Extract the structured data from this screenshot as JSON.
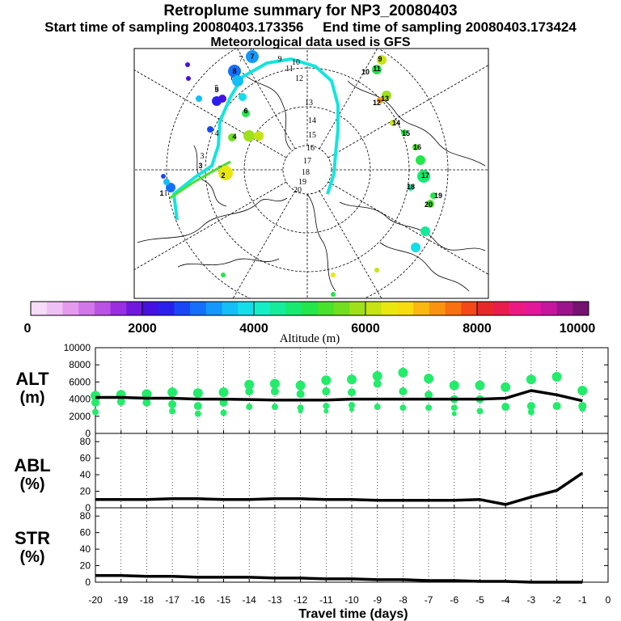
{
  "title": "Retroplume summary for NP3_20080403",
  "subtitle": "Start time of sampling 20080403.173356     End time of sampling 20080403.173424",
  "met_line": "Meteorological data used is GFS",
  "colorbar": {
    "ticks": [
      "0",
      "2000",
      "4000",
      "6000",
      "8000",
      "10000"
    ],
    "label": "Altitude (m)",
    "colors": [
      "#f6dcf8",
      "#efc0f4",
      "#e49bee",
      "#d276ea",
      "#bb52e6",
      "#9a2ee2",
      "#7018de",
      "#4610e0",
      "#2a20ee",
      "#1848f6",
      "#1470fa",
      "#1498fc",
      "#14bef6",
      "#14deea",
      "#14eec6",
      "#14ec9a",
      "#16ea70",
      "#22e64a",
      "#48e22c",
      "#72de20",
      "#9ee01a",
      "#c6e414",
      "#e8e810",
      "#f8dc10",
      "#fab810",
      "#fa9410",
      "#f87010",
      "#f44818",
      "#e82828",
      "#ea1c4c",
      "#ec1a80",
      "#e2189c",
      "#c616a0",
      "#9c148c",
      "#741470"
    ]
  },
  "map": {
    "trajectory_labels": [
      "1",
      "2",
      "3",
      "4",
      "5",
      "6",
      "7",
      "8",
      "9",
      "10",
      "11",
      "12",
      "13",
      "14",
      "15",
      "16",
      "17",
      "18",
      "19",
      "20"
    ],
    "cluster_labels": [
      "1",
      "2",
      "3",
      "4",
      "5",
      "6",
      "7",
      "8",
      "9",
      "10",
      "11",
      "12",
      "13",
      "14",
      "15",
      "16",
      "17",
      "18",
      "19",
      "20"
    ]
  },
  "chart_data": [
    {
      "panel": "ALT",
      "type": "line",
      "ylabel": "ALT\n(m)",
      "ylim": [
        0,
        10000
      ],
      "yticks": [
        0,
        2000,
        4000,
        6000,
        8000,
        10000
      ],
      "x": [
        -20,
        -19,
        -18,
        -17,
        -16,
        -15,
        -14,
        -13,
        -12,
        -11,
        -10,
        -9,
        -8,
        -7,
        -6,
        -5,
        -4,
        -3,
        -2,
        -1
      ],
      "values": [
        4200,
        4200,
        4100,
        4100,
        4000,
        4000,
        3950,
        3900,
        3900,
        3900,
        4000,
        4000,
        4000,
        4000,
        4000,
        4000,
        4100,
        5000,
        4500,
        3800
      ],
      "clusters": [
        [
          [
            -20,
            4400
          ],
          [
            -20,
            3600
          ],
          [
            -20,
            2500
          ]
        ],
        [
          [
            -19,
            4500
          ],
          [
            -19,
            3700
          ]
        ],
        [
          [
            -18,
            4600
          ],
          [
            -18,
            3600
          ]
        ],
        [
          [
            -17,
            4800
          ],
          [
            -17,
            3400
          ],
          [
            -17,
            2600
          ]
        ],
        [
          [
            -16,
            4700
          ],
          [
            -16,
            3200
          ],
          [
            -16,
            2300
          ]
        ],
        [
          [
            -15,
            4800
          ],
          [
            -15,
            3600
          ],
          [
            -15,
            2400
          ]
        ],
        [
          [
            -14,
            5700
          ],
          [
            -14,
            4900
          ],
          [
            -14,
            3100
          ]
        ],
        [
          [
            -13,
            5800
          ],
          [
            -13,
            4900
          ],
          [
            -13,
            3100
          ]
        ],
        [
          [
            -12,
            5600
          ],
          [
            -12,
            4600
          ],
          [
            -12,
            3000
          ],
          [
            -12,
            2600
          ]
        ],
        [
          [
            -11,
            6200
          ],
          [
            -11,
            4900
          ],
          [
            -11,
            3200
          ],
          [
            -11,
            2600
          ]
        ],
        [
          [
            -10,
            6300
          ],
          [
            -10,
            4800
          ],
          [
            -10,
            3300
          ],
          [
            -10,
            2800
          ]
        ],
        [
          [
            -9,
            6700
          ],
          [
            -9,
            5800
          ],
          [
            -9,
            3100
          ]
        ],
        [
          [
            -8,
            7100
          ],
          [
            -8,
            4900
          ],
          [
            -8,
            3000
          ]
        ],
        [
          [
            -7,
            6400
          ],
          [
            -7,
            4500
          ],
          [
            -7,
            3000
          ]
        ],
        [
          [
            -6,
            5600
          ],
          [
            -6,
            4000
          ],
          [
            -6,
            3000
          ],
          [
            -6,
            2300
          ]
        ],
        [
          [
            -5,
            5600
          ],
          [
            -5,
            4000
          ],
          [
            -5,
            2600
          ]
        ],
        [
          [
            -4,
            5400
          ],
          [
            -4,
            3100
          ]
        ],
        [
          [
            -3,
            6300
          ],
          [
            -3,
            3200
          ],
          [
            -3,
            2500
          ]
        ],
        [
          [
            -2,
            6600
          ],
          [
            -2,
            3200
          ]
        ],
        [
          [
            -1,
            5000
          ],
          [
            -1,
            3200
          ],
          [
            -1,
            2900
          ]
        ]
      ]
    },
    {
      "panel": "ABL",
      "type": "line",
      "ylabel": "ABL\n(%)",
      "ylim": [
        0,
        90
      ],
      "yticks": [
        0,
        20,
        40,
        60,
        80
      ],
      "x": [
        -20,
        -19,
        -18,
        -17,
        -16,
        -15,
        -14,
        -13,
        -12,
        -11,
        -10,
        -9,
        -8,
        -7,
        -6,
        -5,
        -4,
        -3,
        -2,
        -1
      ],
      "values": [
        10,
        10,
        10,
        11,
        11,
        10,
        10,
        11,
        11,
        10,
        10,
        9,
        9,
        9,
        9,
        10,
        4,
        13,
        21,
        42
      ]
    },
    {
      "panel": "STR",
      "type": "line",
      "ylabel": "STR\n(%)",
      "ylim": [
        0,
        90
      ],
      "yticks": [
        0,
        20,
        40,
        60,
        80
      ],
      "x": [
        -20,
        -19,
        -18,
        -17,
        -16,
        -15,
        -14,
        -13,
        -12,
        -11,
        -10,
        -9,
        -8,
        -7,
        -6,
        -5,
        -4,
        -3,
        -2,
        -1
      ],
      "values": [
        8,
        8,
        7,
        7,
        6,
        6,
        6,
        5,
        5,
        4,
        4,
        3,
        3,
        2,
        2,
        1,
        1,
        0,
        0,
        0
      ]
    }
  ],
  "xaxis": {
    "label": "Travel time (days)",
    "ticks": [
      "-20",
      "-19",
      "-18",
      "-17",
      "-16",
      "-15",
      "-14",
      "-13",
      "-12",
      "-11",
      "-10",
      "-9",
      "-8",
      "-7",
      "-6",
      "-5",
      "-4",
      "-3",
      "-2",
      "-1",
      "0"
    ]
  }
}
